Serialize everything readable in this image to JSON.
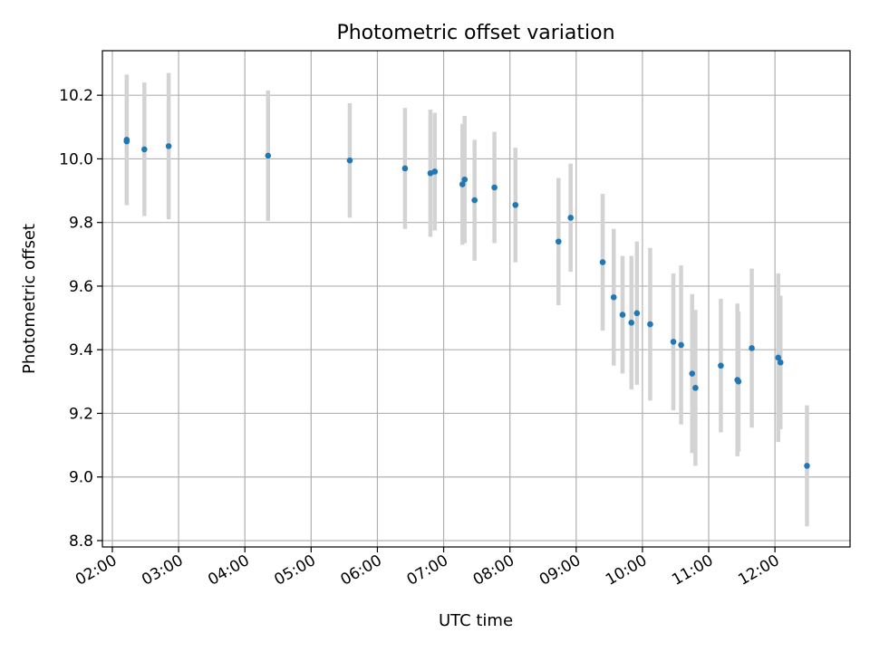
{
  "chart_data": {
    "type": "scatter",
    "title": "Photometric offset variation",
    "xlabel": "UTC time",
    "ylabel": "Photometric offset",
    "grid": true,
    "xlim": [
      "01:51",
      "13:08"
    ],
    "ylim": [
      8.78,
      10.34
    ],
    "x_ticks": [
      "02:00",
      "03:00",
      "04:00",
      "05:00",
      "06:00",
      "07:00",
      "08:00",
      "09:00",
      "10:00",
      "11:00",
      "12:00"
    ],
    "y_ticks": [
      8.8,
      9.0,
      9.2,
      9.4,
      9.6,
      9.8,
      10.0,
      10.2
    ],
    "y_tick_labels": [
      "8.8",
      "9.0",
      "9.2",
      "9.4",
      "9.6",
      "9.8",
      "10.0",
      "10.2"
    ],
    "point_color": "#1f77b4",
    "errorbar_color": "#d3d3d3",
    "points": [
      {
        "x": "02:13",
        "y": 10.06,
        "err": 0.205
      },
      {
        "x": "02:13",
        "y": 10.055,
        "err": 0.2
      },
      {
        "x": "02:29",
        "y": 10.03,
        "err": 0.21
      },
      {
        "x": "02:51",
        "y": 10.04,
        "err": 0.23
      },
      {
        "x": "04:21",
        "y": 10.01,
        "err": 0.205
      },
      {
        "x": "05:35",
        "y": 9.995,
        "err": 0.18
      },
      {
        "x": "06:25",
        "y": 9.97,
        "err": 0.19
      },
      {
        "x": "06:48",
        "y": 9.955,
        "err": 0.2
      },
      {
        "x": "06:52",
        "y": 9.96,
        "err": 0.185
      },
      {
        "x": "07:17",
        "y": 9.92,
        "err": 0.19
      },
      {
        "x": "07:19",
        "y": 9.935,
        "err": 0.2
      },
      {
        "x": "07:28",
        "y": 9.87,
        "err": 0.19
      },
      {
        "x": "07:46",
        "y": 9.91,
        "err": 0.175
      },
      {
        "x": "08:05",
        "y": 9.855,
        "err": 0.18
      },
      {
        "x": "08:44",
        "y": 9.74,
        "err": 0.2
      },
      {
        "x": "08:55",
        "y": 9.815,
        "err": 0.17
      },
      {
        "x": "09:24",
        "y": 9.675,
        "err": 0.215
      },
      {
        "x": "09:34",
        "y": 9.565,
        "err": 0.215
      },
      {
        "x": "09:42",
        "y": 9.51,
        "err": 0.185
      },
      {
        "x": "09:50",
        "y": 9.485,
        "err": 0.21
      },
      {
        "x": "09:55",
        "y": 9.515,
        "err": 0.225
      },
      {
        "x": "10:07",
        "y": 9.48,
        "err": 0.24
      },
      {
        "x": "10:28",
        "y": 9.425,
        "err": 0.215
      },
      {
        "x": "10:35",
        "y": 9.415,
        "err": 0.25
      },
      {
        "x": "10:45",
        "y": 9.325,
        "err": 0.25
      },
      {
        "x": "10:48",
        "y": 9.28,
        "err": 0.245
      },
      {
        "x": "11:11",
        "y": 9.35,
        "err": 0.21
      },
      {
        "x": "11:26",
        "y": 9.305,
        "err": 0.24
      },
      {
        "x": "11:27",
        "y": 9.3,
        "err": 0.22
      },
      {
        "x": "11:39",
        "y": 9.405,
        "err": 0.25
      },
      {
        "x": "12:03",
        "y": 9.375,
        "err": 0.265
      },
      {
        "x": "12:05",
        "y": 9.36,
        "err": 0.21
      },
      {
        "x": "12:29",
        "y": 9.035,
        "err": 0.19
      }
    ]
  }
}
